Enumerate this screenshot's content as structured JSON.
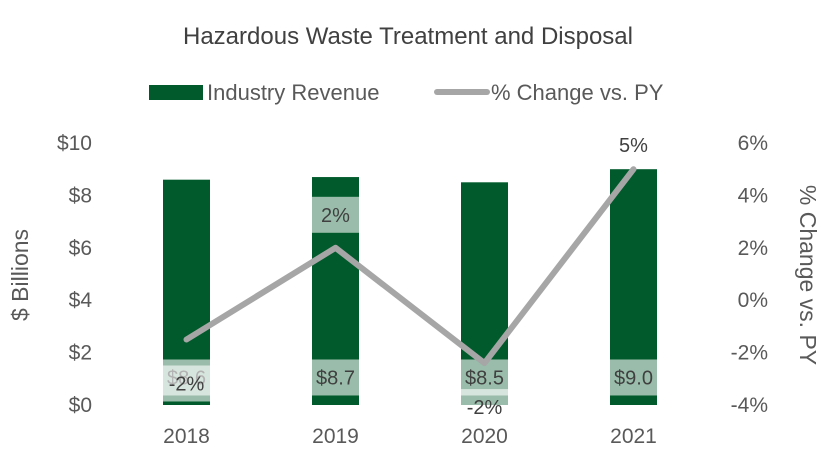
{
  "chart_data": {
    "type": "bar",
    "title": "Hazardous Waste Treatment and Disposal",
    "categories": [
      "2018",
      "2019",
      "2020",
      "2021"
    ],
    "series": [
      {
        "name": "Industry Revenue",
        "kind": "bar",
        "axis": "left",
        "color": "#005A2B",
        "values": [
          8.6,
          8.7,
          8.5,
          9.0
        ],
        "labels": [
          "$8.6",
          "$8.7",
          "$8.5",
          "$9.0"
        ]
      },
      {
        "name": "% Change vs. PY",
        "kind": "line",
        "axis": "right",
        "color": "#A6A6A6",
        "values": [
          -1.5,
          2.0,
          -2.4,
          5.0
        ],
        "labels": [
          "-2%",
          "2%",
          "-2%",
          "5%"
        ]
      }
    ],
    "ylabel": "$ Billions",
    "y2label": "% Change vs. PY",
    "ylim": [
      0,
      10
    ],
    "y2lim": [
      -4,
      6
    ],
    "yticks": [
      "$0",
      "$2",
      "$4",
      "$6",
      "$8",
      "$10"
    ],
    "y2ticks": [
      "-4%",
      "-2%",
      "0%",
      "2%",
      "4%",
      "6%"
    ],
    "legend_position": "top",
    "grid": false
  }
}
